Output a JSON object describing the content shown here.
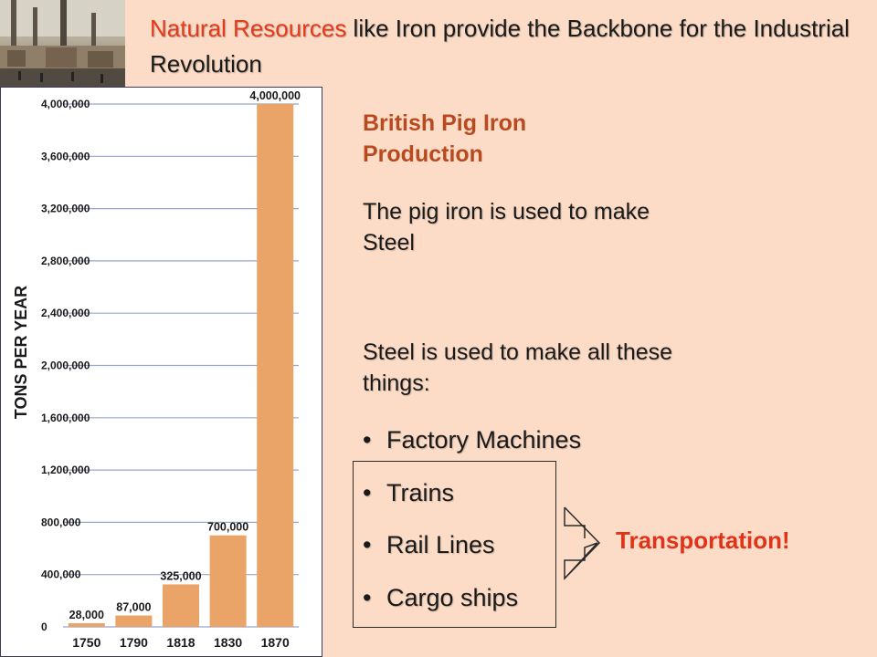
{
  "slide": {
    "title_accent": "Natural Resources",
    "title_rest": " like Iron provide the Backbone for the Industrial Revolution",
    "subtitle": "British Pig Iron Production",
    "note1": "The pig iron is used to make Steel",
    "note2": "Steel is used to make all these things:",
    "bullets": [
      "Factory Machines",
      "Trains",
      "Rail Lines",
      "Cargo ships"
    ],
    "bullet_char": "•",
    "transport_label": "Transportation!"
  },
  "chart_data": {
    "type": "bar",
    "categories": [
      "1750",
      "1790",
      "1818",
      "1830",
      "1870"
    ],
    "values": [
      28000,
      87000,
      325000,
      700000,
      4000000
    ],
    "data_labels": [
      "28,000",
      "87,000",
      "325,000",
      "700,000",
      "4,000,000"
    ],
    "ylabel": "TONS PER YEAR",
    "ylim": [
      0,
      4000000
    ],
    "y_ticks": [
      0,
      400000,
      800000,
      1200000,
      1600000,
      2000000,
      2400000,
      2800000,
      3200000,
      3600000,
      4000000
    ],
    "y_tick_labels": [
      "0",
      "400,000",
      "800,000",
      "1,200,000",
      "1,600,000",
      "2,000,000",
      "2,400,000",
      "2,800,000",
      "3,200,000",
      "3,600,000",
      "4,000,000"
    ],
    "grid": true,
    "bar_color": "#eaa467",
    "grid_color": "#9aa5c8"
  }
}
